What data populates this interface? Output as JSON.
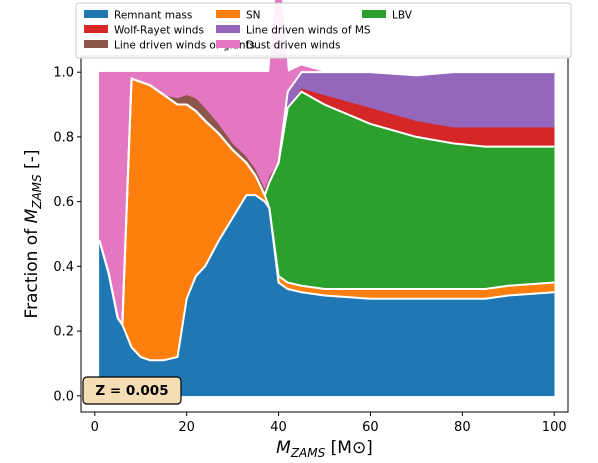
{
  "chart_data": {
    "type": "area",
    "x": [
      1,
      3,
      5,
      6,
      8,
      10,
      12,
      15,
      18,
      20,
      22,
      24,
      27,
      30,
      33,
      35,
      37,
      38,
      40,
      42,
      45,
      50,
      60,
      70,
      78,
      85,
      90,
      100
    ],
    "series": [
      {
        "name": "Remnant mass",
        "color": "#1f77b4",
        "values": [
          0.48,
          0.38,
          0.24,
          0.22,
          0.15,
          0.12,
          0.11,
          0.11,
          0.12,
          0.3,
          0.37,
          0.4,
          0.48,
          0.55,
          0.62,
          0.62,
          0.6,
          0.58,
          0.35,
          0.33,
          0.32,
          0.31,
          0.3,
          0.3,
          0.3,
          0.3,
          0.31,
          0.32
        ]
      },
      {
        "name": "SN",
        "color": "#ff7f0e",
        "values": [
          0,
          0,
          0,
          0,
          0.83,
          0.85,
          0.85,
          0.82,
          0.78,
          0.6,
          0.51,
          0.45,
          0.33,
          0.21,
          0.1,
          0.06,
          0.02,
          0,
          0.02,
          0.02,
          0.02,
          0.02,
          0.03,
          0.03,
          0.03,
          0.03,
          0.03,
          0.03
        ]
      },
      {
        "name": "LBV",
        "color": "#2ca02c",
        "values": [
          0,
          0,
          0,
          0,
          0,
          0,
          0,
          0,
          0,
          0,
          0,
          0,
          0,
          0,
          0,
          0,
          0,
          0.08,
          0.35,
          0.54,
          0.6,
          0.57,
          0.51,
          0.47,
          0.45,
          0.44,
          0.43,
          0.42
        ]
      },
      {
        "name": "Wolf-Rayet winds",
        "color": "#d62728",
        "values": [
          0,
          0,
          0,
          0,
          0,
          0,
          0,
          0,
          0,
          0,
          0,
          0,
          0,
          0,
          0,
          0,
          0,
          0,
          0,
          0,
          0.01,
          0.03,
          0.05,
          0.05,
          0.05,
          0.06,
          0.06,
          0.06
        ]
      },
      {
        "name": "Line driven winds of MS",
        "color": "#9467bd",
        "values": [
          0,
          0,
          0,
          0,
          0,
          0,
          0,
          0,
          0,
          0,
          0,
          0,
          0,
          0,
          0,
          0,
          0,
          0,
          0,
          0.05,
          0.05,
          0.07,
          0.11,
          0.14,
          0.17,
          0.17,
          0.17,
          0.17
        ]
      },
      {
        "name": "Line driven winds of giants",
        "color": "#8c564b",
        "values": [
          0,
          0,
          0,
          0,
          0,
          0,
          0,
          0,
          0.02,
          0.03,
          0.04,
          0.04,
          0.03,
          0.02,
          0.02,
          0.02,
          0.02,
          0.02,
          0,
          0,
          0,
          0,
          0,
          0,
          0,
          0,
          0,
          0
        ]
      },
      {
        "name": "Dust driven winds",
        "color": "#e377c2",
        "values": [
          0.52,
          0.62,
          0.76,
          0.78,
          0.02,
          0.03,
          0.04,
          0.07,
          0.08,
          0.07,
          0.08,
          0.11,
          0.16,
          0.22,
          0.26,
          0.3,
          0.36,
          0.32,
          0.63,
          0.06,
          0.02,
          0,
          0,
          0,
          0,
          0,
          0,
          0
        ]
      }
    ],
    "xlabel": "M_ZAMS [M⊙]",
    "ylabel": "Fraction of M_ZAMS [-]",
    "xlim": [
      -3,
      103
    ],
    "ylim": [
      -0.05,
      1.05
    ],
    "xticks": [
      0,
      20,
      40,
      60,
      80,
      100
    ],
    "yticks": [
      0.0,
      0.2,
      0.4,
      0.6,
      0.8,
      1.0
    ],
    "grid": false,
    "legend": {
      "placement": "top",
      "columns": 3,
      "entries": [
        "Remnant mass",
        "Wolf-Rayet winds",
        "Line driven winds of giants",
        "SN",
        "Line driven winds of MS",
        "Dust driven winds",
        "LBV"
      ]
    },
    "annotation": {
      "text": "Z = 0.005",
      "placement": "bottom-left",
      "facecolor": "#f5deb3"
    }
  }
}
